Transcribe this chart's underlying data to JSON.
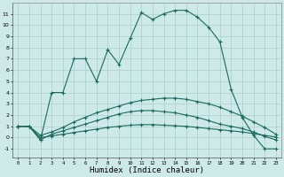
{
  "xlabel": "Humidex (Indice chaleur)",
  "xlim": [
    -0.5,
    23.5
  ],
  "ylim": [
    -1.8,
    12
  ],
  "yticks": [
    -1,
    0,
    1,
    2,
    3,
    4,
    5,
    6,
    7,
    8,
    9,
    10,
    11
  ],
  "xticks": [
    0,
    1,
    2,
    3,
    4,
    5,
    6,
    7,
    8,
    9,
    10,
    11,
    12,
    13,
    14,
    15,
    16,
    17,
    18,
    19,
    20,
    21,
    22,
    23
  ],
  "background_color": "#ceeae8",
  "grid_color": "#aacfcc",
  "line_color": "#1a6b5e",
  "line_width": 0.8,
  "marker": "+",
  "marker_size": 3,
  "marker_edge_width": 0.8,
  "series": [
    {
      "x": [
        0,
        1,
        2,
        3,
        4,
        5,
        6,
        7,
        8,
        9,
        10,
        11,
        12,
        13,
        14,
        15,
        16,
        17,
        18,
        19,
        20,
        21,
        22,
        23
      ],
      "y": [
        1,
        1,
        -0.2,
        4,
        4,
        7,
        7,
        5,
        7.8,
        6.5,
        8.8,
        11.1,
        10.5,
        11,
        11.3,
        11.3,
        10.7,
        9.8,
        8.5,
        4.3,
        1.8,
        0.2,
        -1,
        -1
      ]
    },
    {
      "x": [
        0,
        1,
        2,
        3,
        4,
        5,
        6,
        7,
        8,
        9,
        10,
        11,
        12,
        13,
        14,
        15,
        16,
        17,
        18,
        19,
        20,
        21,
        22,
        23
      ],
      "y": [
        1,
        1,
        -0.2,
        0.3,
        0.6,
        0.9,
        1.2,
        1.5,
        1.8,
        2.1,
        2.3,
        2.4,
        2.4,
        2.3,
        2.2,
        2.0,
        1.8,
        1.5,
        1.2,
        1.0,
        0.8,
        0.5,
        0.1,
        -0.2
      ]
    },
    {
      "x": [
        0,
        1,
        2,
        3,
        4,
        5,
        6,
        7,
        8,
        9,
        10,
        11,
        12,
        13,
        14,
        15,
        16,
        17,
        18,
        19,
        20,
        21,
        22,
        23
      ],
      "y": [
        1,
        1,
        0.2,
        0.5,
        0.9,
        1.4,
        1.8,
        2.2,
        2.5,
        2.8,
        3.1,
        3.3,
        3.4,
        3.5,
        3.5,
        3.4,
        3.2,
        3.0,
        2.7,
        2.3,
        1.9,
        1.4,
        0.9,
        0.3
      ]
    },
    {
      "x": [
        0,
        1,
        2,
        3,
        4,
        5,
        6,
        7,
        8,
        9,
        10,
        11,
        12,
        13,
        14,
        15,
        16,
        17,
        18,
        19,
        20,
        21,
        22,
        23
      ],
      "y": [
        1,
        1,
        0.0,
        0.15,
        0.3,
        0.45,
        0.6,
        0.75,
        0.9,
        1.0,
        1.1,
        1.15,
        1.15,
        1.1,
        1.05,
        1.0,
        0.9,
        0.8,
        0.7,
        0.6,
        0.5,
        0.35,
        0.2,
        0.05
      ]
    }
  ]
}
